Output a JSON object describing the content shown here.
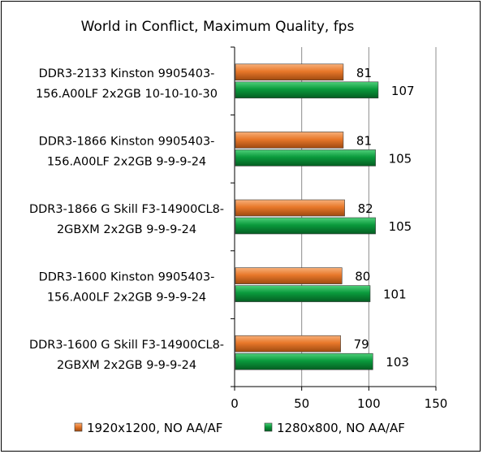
{
  "chart_data": {
    "type": "bar",
    "orientation": "horizontal",
    "title": "World in Conflict,  Maximum Quality,  fps",
    "categories": [
      [
        "DDR3-2133 Kinston 9905403-",
        "156.A00LF 2x2GB 10-10-10-30"
      ],
      [
        "DDR3-1866 Kinston 9905403-",
        "156.A00LF 2x2GB 9-9-9-24"
      ],
      [
        "DDR3-1866 G Skill F3-14900CL8-",
        "2GBXM 2x2GB 9-9-9-24"
      ],
      [
        "DDR3-1600 Kinston 9905403-",
        "156.A00LF 2x2GB 9-9-9-24"
      ],
      [
        "DDR3-1600 G Skill F3-14900CL8-",
        "2GBXM 2x2GB 9-9-9-24"
      ]
    ],
    "series": [
      {
        "name": "1920x1200, NO AA/AF",
        "values": [
          81,
          81,
          82,
          80,
          79
        ],
        "color": "#E8782A"
      },
      {
        "name": "1280x800, NO AA/AF",
        "values": [
          107,
          105,
          105,
          101,
          103
        ],
        "color": "#0A9A3C"
      }
    ],
    "xlim": [
      0,
      150
    ],
    "xticks": [
      0,
      50,
      100,
      150
    ],
    "grid": true,
    "legend_position": "bottom"
  }
}
